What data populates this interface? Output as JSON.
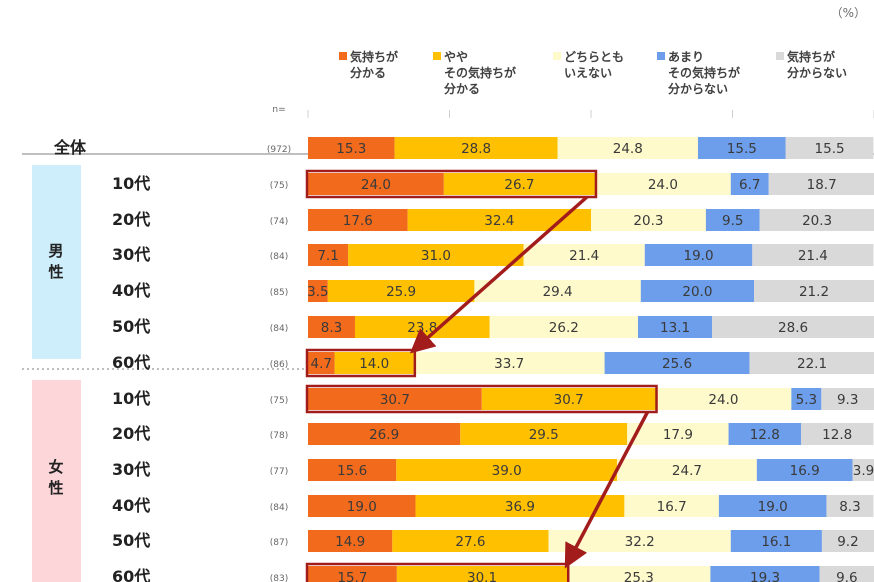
{
  "unit_label": "（%）",
  "n_header": "n=",
  "group_male": [
    "男",
    "性"
  ],
  "group_female": [
    "女",
    "性"
  ],
  "chart_data": {
    "type": "bar",
    "orientation": "horizontal",
    "stacked": true,
    "percent": true,
    "xlim": [
      0,
      100
    ],
    "legend_position": "top",
    "categories": [
      {
        "label": "全体",
        "n": "(972)",
        "group": "total"
      },
      {
        "label": "10代",
        "n": "(75)",
        "group": "male"
      },
      {
        "label": "20代",
        "n": "(74)",
        "group": "male"
      },
      {
        "label": "30代",
        "n": "(84)",
        "group": "male"
      },
      {
        "label": "40代",
        "n": "(85)",
        "group": "male"
      },
      {
        "label": "50代",
        "n": "(84)",
        "group": "male"
      },
      {
        "label": "60代",
        "n": "(86)",
        "group": "male"
      },
      {
        "label": "10代",
        "n": "(75)",
        "group": "female"
      },
      {
        "label": "20代",
        "n": "(78)",
        "group": "female"
      },
      {
        "label": "30代",
        "n": "(77)",
        "group": "female"
      },
      {
        "label": "40代",
        "n": "(84)",
        "group": "female"
      },
      {
        "label": "50代",
        "n": "(87)",
        "group": "female"
      },
      {
        "label": "60代",
        "n": "(83)",
        "group": "female"
      }
    ],
    "series": [
      {
        "name": [
          "気持ちが",
          "分かる"
        ],
        "color": "#f26b1d",
        "values": [
          15.3,
          24.0,
          17.6,
          7.1,
          3.5,
          8.3,
          4.7,
          30.7,
          26.9,
          15.6,
          19.0,
          14.9,
          15.7
        ]
      },
      {
        "name": [
          "やや",
          "その気持ちが",
          "分かる"
        ],
        "color": "#ffc000",
        "values": [
          28.8,
          26.7,
          32.4,
          31.0,
          25.9,
          23.8,
          14.0,
          30.7,
          29.5,
          39.0,
          36.9,
          27.6,
          30.1
        ]
      },
      {
        "name": [
          "どちらとも",
          "いえない"
        ],
        "color": "#fffacc",
        "values": [
          24.8,
          24.0,
          20.3,
          21.4,
          29.4,
          26.2,
          33.7,
          24.0,
          17.9,
          24.7,
          16.7,
          32.2,
          25.3
        ]
      },
      {
        "name": [
          "あまり",
          "その気持ちが",
          "分からない"
        ],
        "color": "#6d9eeb",
        "values": [
          15.5,
          6.7,
          9.5,
          19.0,
          20.0,
          13.1,
          25.6,
          5.3,
          12.8,
          16.9,
          19.0,
          16.1,
          19.3
        ]
      },
      {
        "name": [
          "気持ちが",
          "分からない"
        ],
        "color": "#d9d9d9",
        "values": [
          15.5,
          18.7,
          20.3,
          21.4,
          21.2,
          28.6,
          22.1,
          9.3,
          12.8,
          3.9,
          8.3,
          9.2,
          9.6
        ]
      }
    ],
    "highlights": [
      {
        "row": 1,
        "series": [
          0,
          1
        ]
      },
      {
        "row": 6,
        "series": [
          0,
          1
        ]
      },
      {
        "row": 7,
        "series": [
          0,
          1
        ]
      },
      {
        "row": 12,
        "series": [
          0,
          1
        ]
      }
    ],
    "arrows": [
      {
        "from_row": 1,
        "to_row": 6
      },
      {
        "from_row": 7,
        "to_row": 12
      }
    ],
    "colors": {
      "highlight": "#a31c1c",
      "male_band": "#cfeefb",
      "female_band": "#fcd6d8",
      "separator": "#bfbfbf"
    }
  }
}
